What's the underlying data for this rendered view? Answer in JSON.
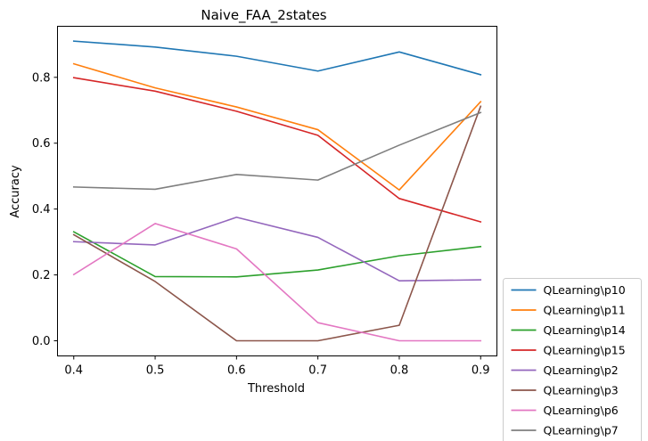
{
  "chart_data": {
    "type": "line",
    "title": "Naive_FAA_2states",
    "xlabel": "Threshold",
    "ylabel": "Accuracy",
    "x": [
      0.4,
      0.5,
      0.6,
      0.7,
      0.8,
      0.9
    ],
    "xticks": [
      0.4,
      0.5,
      0.6,
      0.7,
      0.8,
      0.9
    ],
    "yticks": [
      0.0,
      0.2,
      0.4,
      0.6,
      0.8
    ],
    "xlim": [
      0.38,
      0.92
    ],
    "ylim": [
      -0.046,
      0.955
    ],
    "grid": false,
    "legend_position": "outside-lower-right",
    "series": [
      {
        "name": "QLearning\\p10",
        "color": "#1f77b4",
        "values": [
          0.91,
          0.892,
          0.864,
          0.819,
          0.877,
          0.808
        ]
      },
      {
        "name": "QLearning\\p11",
        "color": "#ff7f0e",
        "values": [
          0.841,
          0.768,
          0.71,
          0.641,
          0.458,
          0.726
        ]
      },
      {
        "name": "QLearning\\p14",
        "color": "#2ca02c",
        "values": [
          0.331,
          0.195,
          0.194,
          0.215,
          0.258,
          0.286
        ]
      },
      {
        "name": "QLearning\\p15",
        "color": "#d62728",
        "values": [
          0.799,
          0.758,
          0.697,
          0.624,
          0.432,
          0.361
        ]
      },
      {
        "name": "QLearning\\p2",
        "color": "#9467bd",
        "values": [
          0.301,
          0.291,
          0.375,
          0.314,
          0.182,
          0.185
        ]
      },
      {
        "name": "QLearning\\p3",
        "color": "#8c564b",
        "values": [
          0.322,
          0.18,
          0.0,
          0.0,
          0.047,
          0.712
        ]
      },
      {
        "name": "QLearning\\p6",
        "color": "#e377c2",
        "values": [
          0.201,
          0.356,
          0.279,
          0.055,
          0.0,
          0.0
        ]
      },
      {
        "name": "QLearning\\p7",
        "color": "#7f7f7f",
        "values": [
          0.467,
          0.46,
          0.505,
          0.488,
          0.594,
          0.693
        ]
      }
    ]
  }
}
